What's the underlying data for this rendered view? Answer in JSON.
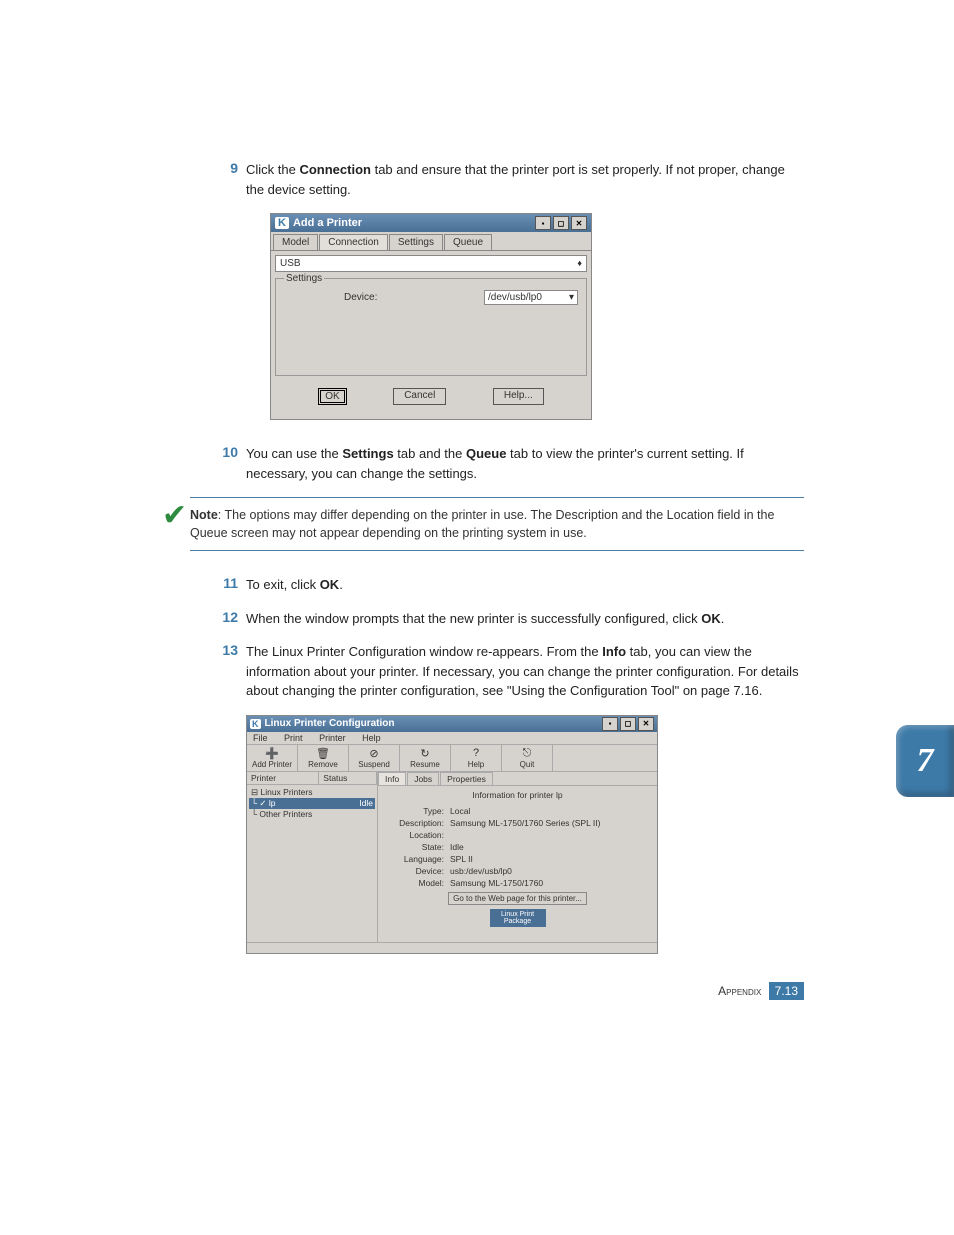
{
  "steps": {
    "s9": {
      "num": "9",
      "text_a": "Click the ",
      "bold_a": "Connection",
      "text_b": " tab and ensure that the printer port is set properly. If not proper, change the device setting."
    },
    "s10": {
      "num": "10",
      "text_a": "You can use the ",
      "bold_a": "Settings",
      "text_b": " tab and the ",
      "bold_b": "Queue",
      "text_c": " tab to view the printer's current setting. If necessary, you can change the settings."
    },
    "s11": {
      "num": "11",
      "text_a": "To exit, click ",
      "bold_a": "OK",
      "text_b": "."
    },
    "s12": {
      "num": "12",
      "text_a": "When the window prompts that the new printer is successfully configured, click ",
      "bold_a": "OK",
      "text_b": "."
    },
    "s13": {
      "num": "13",
      "text_a": "The Linux Printer Configuration window re-appears. From the ",
      "bold_a": "Info",
      "text_b": " tab, you can view the information about your printer. If necessary, you can change the printer configuration. For details about changing the printer configuration, see \"Using the Configuration Tool\" on page 7.16."
    }
  },
  "note": {
    "label": "Note",
    "text": ": The options may differ depending on the printer in use. The Description and the Location field in the Queue screen may not appear depending on the printing system in use."
  },
  "dlg1": {
    "title": "Add a Printer",
    "tabs": [
      "Model",
      "Connection",
      "Settings",
      "Queue"
    ],
    "active_tab": "Connection",
    "combo": "USB",
    "fieldset": "Settings",
    "device_label": "Device:",
    "device_value": "/dev/usb/lp0",
    "buttons": {
      "ok": "OK",
      "cancel": "Cancel",
      "help": "Help..."
    }
  },
  "dlg2": {
    "title": "Linux Printer Configuration",
    "menus": [
      "File",
      "Print",
      "Printer",
      "Help"
    ],
    "toolbar": [
      {
        "icon": "➕",
        "label": "Add Printer"
      },
      {
        "icon": "🗑",
        "label": "Remove"
      },
      {
        "icon": "⊘",
        "label": "Suspend"
      },
      {
        "icon": "↻",
        "label": "Resume"
      },
      {
        "icon": "?",
        "label": "Help"
      },
      {
        "icon": "⎋",
        "label": "Quit"
      }
    ],
    "tree_cols": [
      "Printer",
      "Status"
    ],
    "tree": [
      {
        "label": "⊟ Linux Printers",
        "sel": false
      },
      {
        "label": "  └ ✓ lp",
        "status": "Idle",
        "sel": true
      },
      {
        "label": "└ Other Printers",
        "sel": false
      }
    ],
    "rtabs": [
      "Info",
      "Jobs",
      "Properties"
    ],
    "info_title": "Information for printer lp",
    "info": [
      {
        "l": "Type:",
        "v": "Local"
      },
      {
        "l": "Description:",
        "v": "Samsung ML-1750/1760 Series (SPL II)"
      },
      {
        "l": "Location:",
        "v": ""
      },
      {
        "l": "State:",
        "v": "Idle"
      },
      {
        "l": "Language:",
        "v": "SPL II"
      },
      {
        "l": "Device:",
        "v": "usb:/dev/usb/lp0"
      },
      {
        "l": "Model:",
        "v": "Samsung ML-1750/1760"
      }
    ],
    "go_btn": "Go to the Web page for this printer...",
    "logo": "Linux Print Package"
  },
  "chapter": "7",
  "footer": {
    "label": "Appendix",
    "page": "7.13"
  }
}
